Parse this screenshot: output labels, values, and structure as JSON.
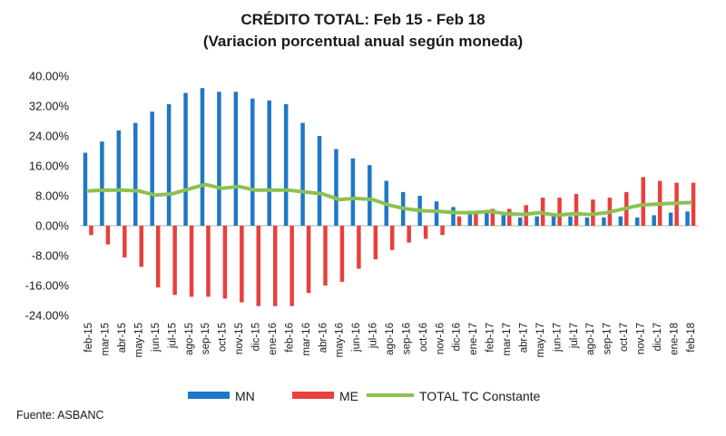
{
  "chart_data": {
    "type": "bar",
    "title": "CRÉDITO TOTAL: Feb 15 - Feb 18",
    "subtitle": "(Variacion porcentual anual según moneda)",
    "source": "Fuente: ASBANC",
    "ylim": [
      -24,
      40
    ],
    "yticks": [
      40,
      32,
      24,
      16,
      8,
      0,
      -8,
      -16,
      -24
    ],
    "ytick_labels": [
      "40.00%",
      "32.00%",
      "24.00%",
      "16.00%",
      "8.00%",
      "0.00%",
      "-8.00%",
      "-16.00%",
      "-24.00%"
    ],
    "categories": [
      "feb-15",
      "mar-15",
      "abr-15",
      "may-15",
      "jun-15",
      "jul-15",
      "ago-15",
      "sep-15",
      "oct-15",
      "nov-15",
      "dic-15",
      "ene-16",
      "feb-16",
      "mar-16",
      "abr-16",
      "may-16",
      "jun-16",
      "jul-16",
      "ago-16",
      "sep-16",
      "oct-16",
      "nov-16",
      "dic-16",
      "ene-17",
      "feb-17",
      "mar-17",
      "abr-17",
      "may-17",
      "jun-17",
      "jul-17",
      "ago-17",
      "sep-17",
      "oct-17",
      "nov-17",
      "dic-17",
      "ene-18",
      "feb-18"
    ],
    "series": [
      {
        "name": "MN",
        "kind": "bar",
        "color": "#1f77c8",
        "values": [
          19.5,
          22.5,
          25.5,
          27.5,
          30.5,
          32.5,
          35.5,
          36.8,
          35.8,
          35.8,
          34,
          33.5,
          32.5,
          27.5,
          24,
          20.5,
          18,
          16.2,
          12,
          9,
          8,
          6.5,
          5,
          4,
          3.5,
          2.8,
          2.2,
          2.5,
          2.5,
          2.5,
          2.2,
          2.2,
          2.5,
          2.2,
          2.8,
          3.5,
          3.8
        ]
      },
      {
        "name": "ME",
        "kind": "bar",
        "color": "#e8403e",
        "values": [
          -2.5,
          -5,
          -8.5,
          -11,
          -16.5,
          -18.5,
          -19,
          -19,
          -19.5,
          -20.5,
          -21.5,
          -21.5,
          -21.5,
          -18,
          -16,
          -15,
          -11.5,
          -9,
          -6.5,
          -4.5,
          -3.5,
          -2.5,
          2.5,
          4,
          4.5,
          4.5,
          5.5,
          7.5,
          7.5,
          8.5,
          7,
          7.5,
          9,
          13,
          12,
          11.5,
          11.5
        ]
      },
      {
        "name": "TOTAL TC Constante",
        "kind": "line",
        "color": "#8cc152",
        "values": [
          9.3,
          9.5,
          9.5,
          9.3,
          8.2,
          8.5,
          9.8,
          11,
          10,
          10.5,
          9.5,
          9.5,
          9.5,
          9,
          8.5,
          7,
          7.3,
          7,
          5.5,
          4.5,
          4,
          3.8,
          3.5,
          3.5,
          3.8,
          3.2,
          3,
          3.5,
          2.8,
          3.2,
          3,
          3.5,
          4.5,
          5.5,
          5.8,
          6,
          6.2
        ]
      }
    ],
    "legend_position": "bottom",
    "grid": false
  }
}
